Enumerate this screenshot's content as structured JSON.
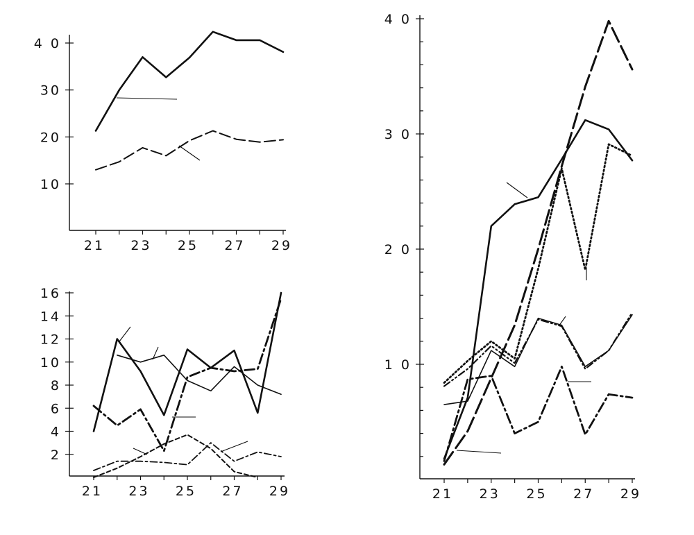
{
  "chart_data": [
    {
      "type": "line",
      "id": "top-left",
      "title": "",
      "xlabel": "",
      "ylabel": "",
      "x_ticks": [
        21,
        23,
        25,
        27,
        29
      ],
      "y_ticks": [
        10,
        20,
        30,
        40
      ],
      "x_tick_labels": [
        "21",
        "23",
        "25",
        "27",
        "29"
      ],
      "y_tick_labels": [
        "10",
        "20",
        "30",
        "4 0"
      ],
      "xlim": [
        20,
        29
      ],
      "ylim": [
        0,
        44
      ],
      "grid": false,
      "legend": "none",
      "series": [
        {
          "style": "solid-heavy",
          "x": [
            21,
            22,
            23,
            24,
            25,
            26,
            27,
            28,
            29
          ],
          "y": [
            21.3,
            30.0,
            37.0,
            32.7,
            36.9,
            42.4,
            40.6,
            40.6,
            38.1
          ]
        },
        {
          "style": "long-dash",
          "x": [
            21,
            22,
            23,
            24,
            25,
            26,
            27,
            28,
            29
          ],
          "y": [
            13.0,
            14.7,
            17.7,
            16.0,
            19.2,
            21.3,
            19.5,
            18.9,
            19.4
          ]
        }
      ]
    },
    {
      "type": "line",
      "id": "bottom-left",
      "title": "",
      "xlabel": "",
      "ylabel": "",
      "x_ticks": [
        21,
        23,
        25,
        27,
        29
      ],
      "y_ticks": [
        2,
        4,
        6,
        8,
        10,
        12,
        14,
        16
      ],
      "x_tick_labels": [
        "21",
        "23",
        "25",
        "27",
        "29"
      ],
      "y_tick_labels": [
        "2",
        "4",
        "6",
        "8",
        "10",
        "12",
        "14",
        "16"
      ],
      "xlim": [
        20,
        29
      ],
      "ylim": [
        0,
        16
      ],
      "grid": false,
      "legend": "none",
      "series": [
        {
          "style": "solid-heavy",
          "x": [
            21,
            22,
            23,
            24,
            25,
            26,
            27,
            28,
            29
          ],
          "y": [
            4.0,
            12.0,
            9.2,
            5.4,
            11.1,
            9.5,
            11.0,
            5.6,
            16.0
          ]
        },
        {
          "style": "solid-thin",
          "x": [
            22,
            23,
            24,
            25,
            26,
            27,
            28,
            29
          ],
          "y": [
            10.6,
            10.0,
            10.6,
            8.4,
            7.5,
            9.6,
            8.0,
            7.2
          ]
        },
        {
          "style": "dash-dot-heavy",
          "x": [
            21,
            22,
            23,
            24,
            25,
            26,
            27,
            28,
            29
          ],
          "y": [
            6.2,
            4.5,
            5.9,
            2.3,
            8.7,
            9.5,
            9.2,
            9.4,
            15.5
          ]
        },
        {
          "style": "short-dash",
          "x": [
            21,
            22,
            23,
            24,
            25,
            26,
            27,
            28
          ],
          "y": [
            0.0,
            0.8,
            1.8,
            2.9,
            3.7,
            2.5,
            0.5,
            0.0
          ]
        },
        {
          "style": "dash-dot-thin",
          "x": [
            21,
            22,
            23,
            24,
            25,
            26,
            27,
            28,
            29
          ],
          "y": [
            0.6,
            1.4,
            1.4,
            1.3,
            1.1,
            3.0,
            1.4,
            2.2,
            1.8
          ]
        }
      ]
    },
    {
      "type": "line",
      "id": "right",
      "title": "",
      "xlabel": "",
      "ylabel": "",
      "x_ticks": [
        21,
        23,
        25,
        27,
        29
      ],
      "y_ticks": [
        10,
        20,
        30,
        40
      ],
      "x_tick_labels": [
        "21",
        "23",
        "25",
        "27",
        "29"
      ],
      "y_tick_labels": [
        "1 0",
        "2 0",
        "3 0",
        "4 0"
      ],
      "xlim": [
        20,
        29
      ],
      "ylim": [
        0,
        40
      ],
      "grid": false,
      "legend": "none",
      "series": [
        {
          "style": "solid-heavy",
          "x": [
            21,
            22,
            23,
            24,
            25,
            26,
            27,
            28,
            29
          ],
          "y": [
            1.8,
            7.1,
            22.0,
            23.9,
            24.5,
            27.8,
            31.2,
            30.4,
            27.7
          ]
        },
        {
          "style": "long-dash-heavy",
          "x": [
            21,
            22,
            23,
            24,
            25,
            26,
            27,
            28,
            29
          ],
          "y": [
            1.3,
            4.2,
            8.8,
            13.4,
            20.0,
            27.2,
            34.1,
            39.8,
            35.6
          ]
        },
        {
          "style": "dotted",
          "x": [
            21,
            22,
            23,
            24,
            25,
            26,
            27,
            28,
            29
          ],
          "y": [
            8.4,
            10.3,
            12.0,
            10.5,
            18.3,
            27.0,
            18.2,
            29.1,
            28.1
          ]
        },
        {
          "style": "dash-dot-dot",
          "x": [
            21,
            22,
            23,
            24,
            25,
            26,
            27,
            28,
            29
          ],
          "y": [
            8.1,
            9.6,
            11.6,
            10.1,
            13.9,
            13.3,
            9.6,
            11.2,
            14.5
          ]
        },
        {
          "style": "solid-thin",
          "x": [
            21,
            22,
            23,
            24,
            25,
            26,
            27,
            28,
            29
          ],
          "y": [
            6.5,
            6.8,
            11.2,
            9.8,
            14.0,
            13.4,
            9.8,
            11.2,
            14.3
          ]
        },
        {
          "style": "dash-dot-heavy",
          "x": [
            21,
            22,
            23,
            24,
            25,
            26,
            27,
            28,
            29
          ],
          "y": [
            1.6,
            8.7,
            9.0,
            4.0,
            5.0,
            9.8,
            3.9,
            7.4,
            7.1
          ]
        }
      ]
    }
  ]
}
